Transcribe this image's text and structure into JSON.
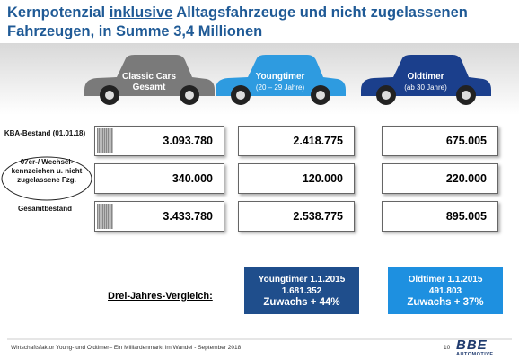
{
  "header": {
    "title_before": "Kernpotenzial ",
    "title_underlined": "inklusive",
    "title_after": " Alltagsfahrzeuge und nicht zugelassenen Fahrzeugen, in Summe 3,4 Millionen"
  },
  "columns": [
    {
      "label": "Classic Cars",
      "sublabel": "Gesamt"
    },
    {
      "label": "Youngtimer",
      "sublabel": "(20 – 29 Jahre)"
    },
    {
      "label": "Oldtimer",
      "sublabel": "(ab 30 Jahre)"
    }
  ],
  "table": {
    "rows": [
      {
        "label": "KBA-Bestand (01.01.18)",
        "values": [
          "3.093.780",
          "2.418.775",
          "675.005"
        ]
      },
      {
        "label": "07er-/ Wechsel-kennzeichen u. nicht zugelassene Fzg.",
        "values": [
          "340.000",
          "120.000",
          "220.000"
        ]
      },
      {
        "label": "Gesamtbestand",
        "values": [
          "3.433.780",
          "2.538.775",
          "895.005"
        ]
      }
    ]
  },
  "comparison": {
    "label": "Drei-Jahres-Vergleich:",
    "boxes": [
      {
        "title": "Youngtimer 1.1.2015",
        "value": "1.681.352",
        "growth": "Zuwachs + 44%"
      },
      {
        "title": "Oldtimer 1.1.2015",
        "value": "491.803",
        "growth": "Zuwachs + 37%"
      }
    ]
  },
  "footer": {
    "text": "Wirtschaftsfaktor Young- und Oldtimer– Ein Milliardenmarkt im Wandel - September 2018",
    "page": "10",
    "logo": "BBE",
    "logo_sub": "AUTOMOTIVE"
  }
}
